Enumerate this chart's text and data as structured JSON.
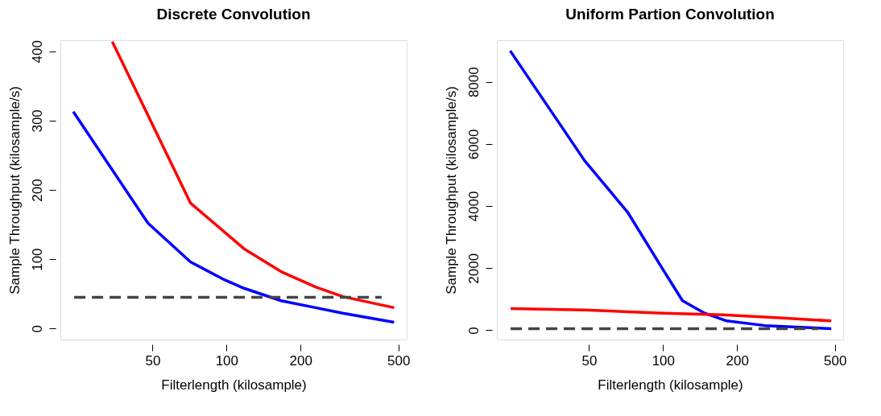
{
  "chart_data": [
    {
      "type": "line",
      "title": "Discrete Convolution",
      "xlabel": "Filterlength (kilosample)",
      "ylabel": "Sample Throughput (kilosample/s)",
      "log": "x",
      "xlim": [
        21.1,
        540
      ],
      "xticks": [
        50,
        100,
        200,
        500
      ],
      "ylim": [
        -16,
        416
      ],
      "yticks": [
        0,
        100,
        200,
        300,
        400
      ],
      "series": [
        {
          "color": "#0000ff",
          "x": [
            23.8,
            47.9,
            71.3,
            98.4,
            117.8,
            166.6,
            230,
            297,
            480
          ],
          "values": [
            313,
            152,
            96,
            70,
            58,
            40,
            30,
            22,
            9
          ]
        },
        {
          "color": "#ff0000",
          "x": [
            34.3,
            71.3,
            117.8,
            166.6,
            230,
            297,
            480
          ],
          "values": [
            414,
            181,
            115,
            82,
            60,
            46,
            30
          ]
        },
        {
          "color": "#444444",
          "line_style": "dashed",
          "x": [
            24,
            427
          ],
          "values": [
            45,
            45
          ]
        }
      ]
    },
    {
      "type": "line",
      "title": "Uniform Partion Convolution",
      "xlabel": "Filterlength (kilosample)",
      "ylabel": "Sample Throughput (kilosample/s)",
      "log": "x",
      "xlim": [
        21.1,
        540
      ],
      "xticks": [
        50,
        100,
        200,
        500
      ],
      "ylim": [
        -300,
        9340
      ],
      "yticks": [
        0,
        2000,
        4000,
        6000,
        8000
      ],
      "series": [
        {
          "color": "#0000ff",
          "x": [
            23.9,
            48.1,
            71.8,
            100,
            120,
            147.6,
            181.5,
            260,
            483
          ],
          "values": [
            9000,
            5450,
            3800,
            1950,
            950,
            550,
            300,
            150,
            50
          ]
        },
        {
          "color": "#ff0000",
          "x": [
            24,
            48,
            100,
            175,
            297,
            483
          ],
          "values": [
            700,
            650,
            550,
            500,
            400,
            300
          ]
        },
        {
          "color": "#444444",
          "line_style": "dashed",
          "x": [
            24,
            427
          ],
          "values": [
            50,
            50
          ]
        }
      ]
    }
  ]
}
